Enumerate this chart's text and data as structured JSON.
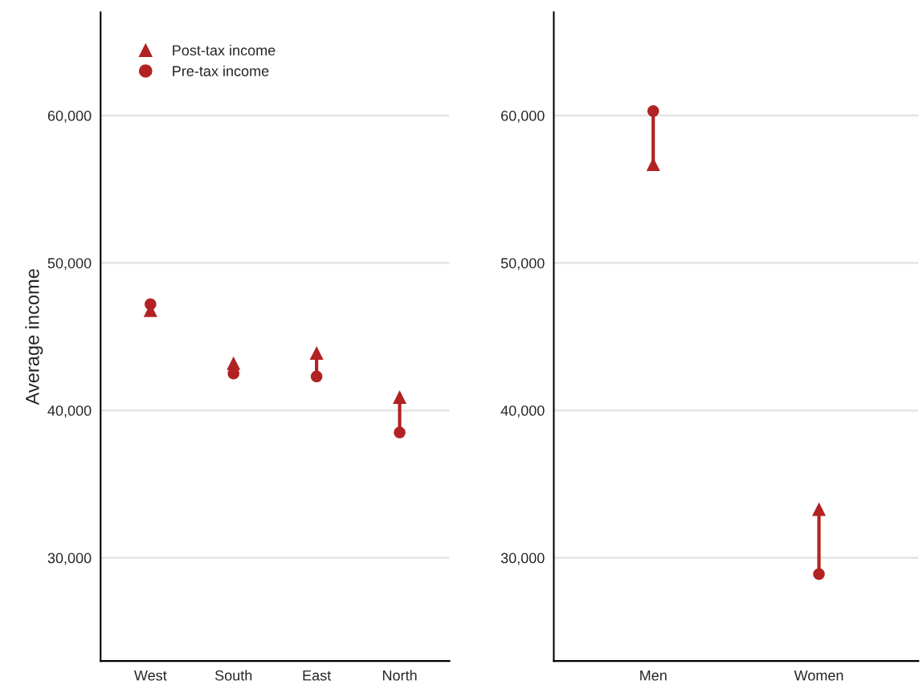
{
  "chart_data": [
    {
      "type": "scatter",
      "ylabel": "Average income",
      "categories": [
        "West",
        "South",
        "East",
        "North"
      ],
      "series": [
        {
          "name": "Post-tax income",
          "color": "#b22222",
          "marker": "triangle",
          "values": [
            46800,
            43200,
            43900,
            40900
          ]
        },
        {
          "name": "Pre-tax income",
          "color": "#b22222",
          "marker": "circle",
          "values": [
            47200,
            42500,
            42300,
            38500
          ]
        }
      ],
      "ylim": [
        23000,
        67000
      ],
      "yticks": [
        {
          "value": 30000,
          "label": "30,000"
        },
        {
          "value": 40000,
          "label": "40,000"
        },
        {
          "value": 50000,
          "label": "50,000"
        },
        {
          "value": 60000,
          "label": "60,000"
        }
      ],
      "grid": "y",
      "legend": "top left"
    },
    {
      "type": "scatter",
      "categories": [
        "Men",
        "Women"
      ],
      "series": [
        {
          "color": "#b22222",
          "marker": "triangle",
          "values": [
            56700,
            33300
          ]
        },
        {
          "color": "#b22222",
          "marker": "circle",
          "values": [
            60300,
            28900
          ]
        }
      ],
      "ylim": [
        23000,
        67000
      ],
      "yticks": [
        {
          "value": 30000,
          "label": "30,000"
        },
        {
          "value": 40000,
          "label": "40,000"
        },
        {
          "value": 50000,
          "label": "50,000"
        },
        {
          "value": 60000,
          "label": "60,000"
        }
      ],
      "grid": "y"
    }
  ]
}
